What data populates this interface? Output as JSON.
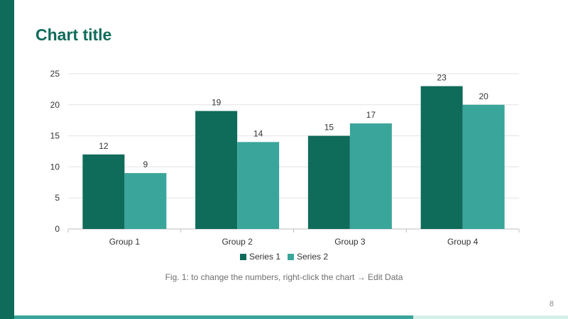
{
  "slide": {
    "title": "Chart title",
    "caption": "Fig. 1: to change the numbers, right-click the chart → Edit Data",
    "page_number": "8",
    "accent_dark": "#0f6b5a",
    "accent_light": "#3aa59a"
  },
  "chart_data": {
    "type": "bar",
    "title": "Chart title",
    "categories": [
      "Group 1",
      "Group 2",
      "Group 3",
      "Group 4"
    ],
    "series": [
      {
        "name": "Series 1",
        "values": [
          12,
          19,
          15,
          23
        ],
        "color": "#0f6b5a"
      },
      {
        "name": "Series 2",
        "values": [
          9,
          14,
          17,
          20
        ],
        "color": "#3aa59a"
      }
    ],
    "yticks": [
      0,
      5,
      10,
      15,
      20,
      25
    ],
    "ylim": [
      0,
      25
    ],
    "xlabel": "",
    "ylabel": "",
    "grid": true,
    "legend": "bottom",
    "data_labels": true
  }
}
